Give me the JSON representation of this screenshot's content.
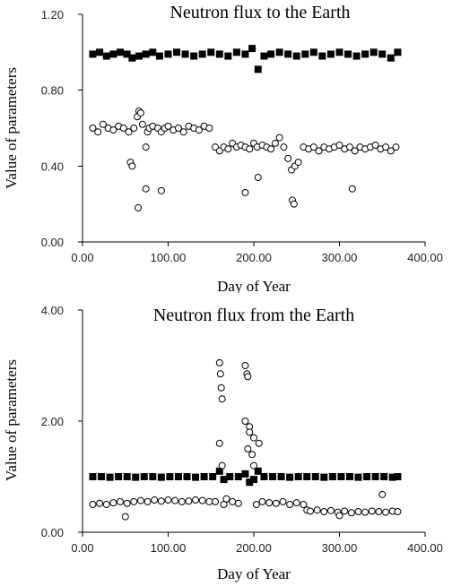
{
  "chart_data": [
    {
      "type": "scatter",
      "title": "Neutron flux to the Earth",
      "xlabel": "Day of Year",
      "ylabel": "Value of parameters",
      "xlim": [
        0,
        400
      ],
      "ylim": [
        0,
        1.2
      ],
      "xticks": [
        "0.00",
        "100.00",
        "200.00",
        "300.00",
        "400.00"
      ],
      "yticks": [
        "0.00",
        "0.40",
        "0.80",
        "1.20"
      ],
      "grid": false,
      "series": [
        {
          "marker": "filled-square",
          "color": "#000000",
          "x": [
            12,
            20,
            28,
            36,
            44,
            52,
            58,
            66,
            74,
            82,
            90,
            100,
            110,
            120,
            130,
            140,
            150,
            160,
            170,
            180,
            190,
            198,
            205,
            212,
            220,
            230,
            240,
            250,
            260,
            270,
            280,
            290,
            300,
            310,
            320,
            330,
            340,
            350,
            360,
            368
          ],
          "y": [
            0.99,
            1.0,
            0.98,
            0.99,
            1.0,
            0.99,
            0.97,
            0.98,
            0.99,
            1.0,
            0.98,
            0.99,
            1.0,
            0.99,
            0.98,
            0.99,
            1.0,
            0.99,
            0.98,
            1.0,
            0.99,
            1.02,
            0.91,
            0.98,
            0.99,
            1.0,
            0.99,
            0.98,
            0.99,
            1.0,
            0.98,
            0.99,
            1.0,
            0.99,
            0.98,
            0.99,
            1.0,
            0.99,
            0.97,
            1.0
          ]
        },
        {
          "marker": "open-circle",
          "color": "#000000",
          "x": [
            12,
            18,
            24,
            30,
            36,
            42,
            48,
            54,
            56,
            58,
            60,
            64,
            66,
            68,
            70,
            74,
            76,
            78,
            82,
            88,
            92,
            96,
            100,
            106,
            112,
            118,
            124,
            130,
            136,
            142,
            148,
            155,
            160,
            165,
            170,
            175,
            180,
            185,
            190,
            195,
            200,
            204,
            210,
            215,
            220,
            225,
            230,
            235,
            240,
            244,
            248,
            252,
            258,
            264,
            270,
            276,
            282,
            288,
            294,
            300,
            306,
            312,
            318,
            324,
            330,
            336,
            342,
            348,
            354,
            360,
            366,
            65,
            74,
            92,
            190,
            205,
            245,
            247,
            315
          ],
          "y": [
            0.6,
            0.58,
            0.62,
            0.6,
            0.59,
            0.61,
            0.6,
            0.58,
            0.42,
            0.4,
            0.6,
            0.66,
            0.69,
            0.68,
            0.62,
            0.5,
            0.58,
            0.6,
            0.61,
            0.6,
            0.58,
            0.6,
            0.61,
            0.59,
            0.6,
            0.58,
            0.61,
            0.6,
            0.59,
            0.61,
            0.6,
            0.5,
            0.48,
            0.5,
            0.49,
            0.52,
            0.5,
            0.51,
            0.5,
            0.49,
            0.52,
            0.5,
            0.51,
            0.5,
            0.49,
            0.52,
            0.55,
            0.5,
            0.44,
            0.38,
            0.4,
            0.42,
            0.5,
            0.49,
            0.5,
            0.48,
            0.5,
            0.49,
            0.5,
            0.51,
            0.49,
            0.5,
            0.48,
            0.5,
            0.49,
            0.5,
            0.51,
            0.49,
            0.5,
            0.48,
            0.5,
            0.18,
            0.28,
            0.27,
            0.26,
            0.34,
            0.22,
            0.2,
            0.28
          ]
        }
      ]
    },
    {
      "type": "scatter",
      "title": "Neutron flux from the Earth",
      "xlabel": "Day of Year",
      "ylabel": "Value of parameters",
      "xlim": [
        0,
        400
      ],
      "ylim": [
        0,
        4
      ],
      "xticks": [
        "0.00",
        "100.00",
        "200.00",
        "300.00",
        "400.00"
      ],
      "yticks": [
        "0.00",
        "2.00",
        "4.00"
      ],
      "grid": false,
      "series": [
        {
          "marker": "filled-square",
          "color": "#000000",
          "x": [
            12,
            22,
            32,
            42,
            52,
            62,
            72,
            82,
            92,
            102,
            112,
            122,
            132,
            142,
            152,
            160,
            165,
            172,
            182,
            190,
            195,
            200,
            205,
            212,
            222,
            232,
            242,
            252,
            262,
            272,
            282,
            292,
            302,
            312,
            322,
            332,
            342,
            352,
            362,
            368
          ],
          "y": [
            1.0,
            1.0,
            0.99,
            1.0,
            1.0,
            0.99,
            1.0,
            1.0,
            0.99,
            1.0,
            1.0,
            1.0,
            0.99,
            1.0,
            1.0,
            1.1,
            0.95,
            1.0,
            1.0,
            1.05,
            0.9,
            0.95,
            1.1,
            1.0,
            1.0,
            1.0,
            0.99,
            1.0,
            1.0,
            1.0,
            0.99,
            1.0,
            1.0,
            1.0,
            0.99,
            1.0,
            1.0,
            1.0,
            0.99,
            1.0
          ]
        },
        {
          "marker": "open-circle",
          "color": "#000000",
          "x": [
            12,
            20,
            28,
            36,
            44,
            52,
            60,
            68,
            76,
            84,
            92,
            100,
            108,
            116,
            124,
            132,
            140,
            148,
            155,
            160,
            163,
            165,
            168,
            175,
            182,
            190,
            193,
            195,
            198,
            200,
            203,
            206,
            210,
            218,
            226,
            234,
            242,
            250,
            258,
            262,
            266,
            274,
            282,
            290,
            298,
            306,
            314,
            322,
            330,
            338,
            346,
            354,
            362,
            368,
            50,
            160,
            161,
            162,
            163,
            190,
            192,
            193,
            195,
            200,
            300,
            350
          ],
          "y": [
            0.5,
            0.52,
            0.5,
            0.53,
            0.55,
            0.52,
            0.55,
            0.57,
            0.55,
            0.58,
            0.56,
            0.58,
            0.57,
            0.55,
            0.56,
            0.58,
            0.57,
            0.55,
            0.55,
            1.6,
            1.2,
            0.5,
            0.6,
            0.55,
            0.52,
            2.0,
            1.5,
            1.9,
            1.4,
            1.7,
            0.5,
            1.6,
            0.55,
            0.53,
            0.52,
            0.55,
            0.5,
            0.53,
            0.5,
            0.4,
            0.38,
            0.4,
            0.37,
            0.39,
            0.36,
            0.38,
            0.35,
            0.37,
            0.36,
            0.38,
            0.37,
            0.36,
            0.38,
            0.37,
            0.28,
            3.05,
            2.85,
            2.6,
            2.4,
            3.0,
            2.85,
            2.8,
            1.8,
            1.2,
            0.3,
            0.68
          ]
        }
      ]
    }
  ]
}
